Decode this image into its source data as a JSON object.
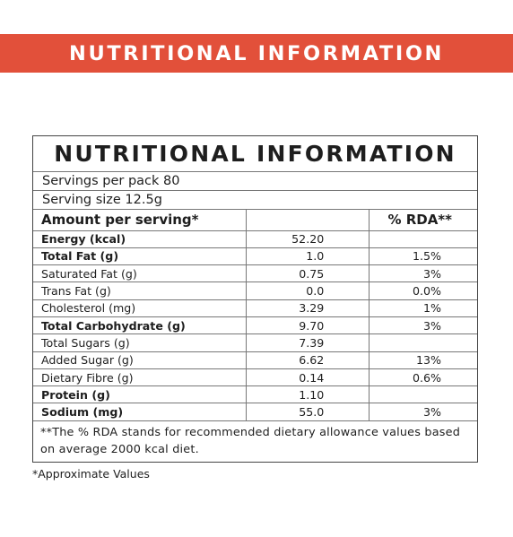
{
  "banner": {
    "title": "NUTRITIONAL INFORMATION",
    "color": "#e2503a"
  },
  "panel": {
    "title": "NUTRITIONAL INFORMATION",
    "servings_per_pack": "Servings per pack 80",
    "serving_size": "Serving size 12.5g",
    "header": {
      "amount": "Amount per serving*",
      "value": "",
      "rda": "% RDA**"
    },
    "rows": [
      {
        "name": "Energy (kcal)",
        "value": "52.20",
        "rda": "",
        "bold": true
      },
      {
        "name": "Total Fat (g)",
        "value": "1.0",
        "rda": "1.5%",
        "bold": true
      },
      {
        "name": "Saturated Fat (g)",
        "value": "0.75",
        "rda": "3%",
        "bold": false
      },
      {
        "name": "Trans Fat (g)",
        "value": "0.0",
        "rda": "0.0%",
        "bold": false
      },
      {
        "name": "Cholesterol (mg)",
        "value": "3.29",
        "rda": "1%",
        "bold": false
      },
      {
        "name": "Total Carbohydrate (g)",
        "value": "9.70",
        "rda": "3%",
        "bold": true
      },
      {
        "name": "Total Sugars (g)",
        "value": "7.39",
        "rda": "",
        "bold": false
      },
      {
        "name": "Added  Sugar (g)",
        "value": "6.62",
        "rda": "13%",
        "bold": false
      },
      {
        "name": "Dietary Fibre (g)",
        "value": "0.14",
        "rda": "0.6%",
        "bold": false
      },
      {
        "name": "Protein (g)",
        "value": "1.10",
        "rda": "",
        "bold": true
      },
      {
        "name": "Sodium (mg)",
        "value": "55.0",
        "rda": "3%",
        "bold": true
      }
    ],
    "footnote": "**The % RDA stands for recommended dietary allowance values based on average 2000 kcal diet."
  },
  "approx_note": "*Approximate Values"
}
